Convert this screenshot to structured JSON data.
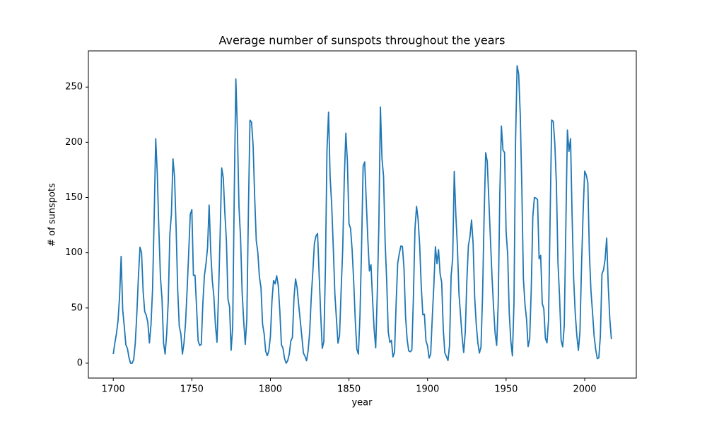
{
  "chart_data": {
    "type": "line",
    "title": "Average number of sunspots throughout the years",
    "x_label": "year",
    "y_label": "# of sunspots",
    "color": "#1f77b4",
    "x": [
      1700,
      1701,
      1702,
      1703,
      1704,
      1705,
      1706,
      1707,
      1708,
      1709,
      1710,
      1711,
      1712,
      1713,
      1714,
      1715,
      1716,
      1717,
      1718,
      1719,
      1720,
      1721,
      1722,
      1723,
      1724,
      1725,
      1726,
      1727,
      1728,
      1729,
      1730,
      1731,
      1732,
      1733,
      1734,
      1735,
      1736,
      1737,
      1738,
      1739,
      1740,
      1741,
      1742,
      1743,
      1744,
      1745,
      1746,
      1747,
      1748,
      1749,
      1750,
      1751,
      1752,
      1753,
      1754,
      1755,
      1756,
      1757,
      1758,
      1759,
      1760,
      1761,
      1762,
      1763,
      1764,
      1765,
      1766,
      1767,
      1768,
      1769,
      1770,
      1771,
      1772,
      1773,
      1774,
      1775,
      1776,
      1777,
      1778,
      1779,
      1780,
      1781,
      1782,
      1783,
      1784,
      1785,
      1786,
      1787,
      1788,
      1789,
      1790,
      1791,
      1792,
      1793,
      1794,
      1795,
      1796,
      1797,
      1798,
      1799,
      1800,
      1801,
      1802,
      1803,
      1804,
      1805,
      1806,
      1807,
      1808,
      1809,
      1810,
      1811,
      1812,
      1813,
      1814,
      1815,
      1816,
      1817,
      1818,
      1819,
      1820,
      1821,
      1822,
      1823,
      1824,
      1825,
      1826,
      1827,
      1828,
      1829,
      1830,
      1831,
      1832,
      1833,
      1834,
      1835,
      1836,
      1837,
      1838,
      1839,
      1840,
      1841,
      1842,
      1843,
      1844,
      1845,
      1846,
      1847,
      1848,
      1849,
      1850,
      1851,
      1852,
      1853,
      1854,
      1855,
      1856,
      1857,
      1858,
      1859,
      1860,
      1861,
      1862,
      1863,
      1864,
      1865,
      1866,
      1867,
      1868,
      1869,
      1870,
      1871,
      1872,
      1873,
      1874,
      1875,
      1876,
      1877,
      1878,
      1879,
      1880,
      1881,
      1882,
      1883,
      1884,
      1885,
      1886,
      1887,
      1888,
      1889,
      1890,
      1891,
      1892,
      1893,
      1894,
      1895,
      1896,
      1897,
      1898,
      1899,
      1900,
      1901,
      1902,
      1903,
      1904,
      1905,
      1906,
      1907,
      1908,
      1909,
      1910,
      1911,
      1912,
      1913,
      1914,
      1915,
      1916,
      1917,
      1918,
      1919,
      1920,
      1921,
      1922,
      1923,
      1924,
      1925,
      1926,
      1927,
      1928,
      1929,
      1930,
      1931,
      1932,
      1933,
      1934,
      1935,
      1936,
      1937,
      1938,
      1939,
      1940,
      1941,
      1942,
      1943,
      1944,
      1945,
      1946,
      1947,
      1948,
      1949,
      1950,
      1951,
      1952,
      1953,
      1954,
      1955,
      1956,
      1957,
      1958,
      1959,
      1960,
      1961,
      1962,
      1963,
      1964,
      1965,
      1966,
      1967,
      1968,
      1969,
      1970,
      1971,
      1972,
      1973,
      1974,
      1975,
      1976,
      1977,
      1978,
      1979,
      1980,
      1981,
      1982,
      1983,
      1984,
      1985,
      1986,
      1987,
      1988,
      1989,
      1990,
      1991,
      1992,
      1993,
      1994,
      1995,
      1996,
      1997,
      1998,
      1999,
      2000,
      2001,
      2002,
      2003,
      2004,
      2005,
      2006,
      2007,
      2008,
      2009,
      2010,
      2011,
      2012,
      2013,
      2014,
      2015,
      2016,
      2017
    ],
    "values": [
      8.3,
      18.3,
      26.7,
      38.3,
      60.0,
      96.7,
      48.3,
      33.3,
      16.7,
      13.3,
      5.0,
      0.0,
      0.0,
      3.3,
      18.3,
      45.0,
      78.3,
      105.0,
      100.0,
      65.0,
      46.7,
      43.3,
      36.7,
      18.3,
      35.0,
      66.7,
      130.0,
      203.3,
      171.7,
      121.7,
      78.3,
      58.3,
      18.3,
      8.3,
      26.7,
      56.7,
      116.7,
      135.0,
      185.0,
      168.3,
      121.7,
      66.7,
      33.3,
      26.7,
      8.3,
      18.3,
      36.7,
      66.7,
      100.0,
      134.8,
      139.0,
      79.5,
      79.7,
      51.2,
      20.3,
      16.0,
      17.0,
      54.0,
      79.3,
      90.0,
      104.8,
      143.2,
      102.0,
      75.2,
      60.7,
      34.8,
      19.0,
      63.0,
      116.3,
      176.8,
      168.0,
      136.0,
      110.8,
      58.0,
      51.0,
      11.7,
      33.0,
      154.2,
      257.3,
      209.8,
      141.3,
      113.5,
      64.2,
      38.0,
      17.0,
      40.2,
      138.2,
      220.0,
      218.2,
      196.8,
      149.8,
      111.0,
      100.0,
      78.2,
      68.3,
      35.5,
      26.7,
      10.7,
      6.8,
      11.3,
      24.2,
      56.7,
      75.0,
      71.8,
      79.2,
      70.3,
      46.8,
      16.8,
      13.5,
      4.2,
      0.0,
      2.3,
      8.3,
      20.3,
      23.2,
      59.0,
      76.3,
      68.3,
      52.9,
      38.5,
      24.2,
      9.2,
      6.3,
      2.2,
      11.4,
      28.2,
      59.9,
      83.0,
      108.5,
      115.2,
      117.4,
      80.8,
      44.3,
      13.4,
      19.5,
      85.8,
      192.7,
      227.3,
      168.7,
      143.0,
      105.5,
      63.3,
      40.3,
      18.1,
      25.1,
      65.8,
      102.7,
      166.3,
      208.3,
      182.5,
      126.3,
      122.0,
      102.7,
      74.1,
      39.0,
      12.7,
      8.2,
      43.4,
      104.4,
      178.3,
      182.2,
      146.6,
      112.1,
      83.5,
      89.2,
      57.8,
      30.7,
      13.9,
      62.8,
      123.6,
      232.0,
      185.3,
      169.2,
      110.1,
      74.5,
      28.3,
      18.9,
      20.7,
      5.7,
      10.0,
      53.7,
      90.5,
      99.0,
      106.1,
      105.8,
      86.3,
      42.4,
      21.8,
      11.2,
      10.4,
      11.8,
      59.5,
      121.7,
      142.0,
      130.0,
      106.6,
      69.4,
      43.8,
      44.4,
      20.2,
      15.7,
      4.6,
      8.5,
      40.8,
      70.1,
      105.5,
      90.1,
      102.8,
      80.9,
      73.2,
      30.9,
      9.5,
      6.0,
      2.4,
      16.1,
      79.0,
      95.0,
      173.6,
      134.6,
      105.7,
      62.7,
      43.5,
      23.7,
      9.7,
      27.9,
      74.0,
      106.5,
      114.7,
      129.7,
      108.2,
      59.4,
      35.1,
      18.6,
      9.2,
      14.6,
      60.2,
      132.8,
      190.6,
      182.6,
      148.0,
      113.0,
      79.2,
      50.8,
      27.1,
      16.1,
      55.3,
      154.3,
      214.7,
      193.0,
      190.7,
      118.9,
      98.3,
      45.0,
      20.1,
      6.6,
      54.2,
      200.7,
      269.3,
      261.7,
      225.1,
      159.0,
      76.4,
      53.4,
      39.9,
      15.0,
      22.0,
      66.8,
      132.9,
      150.0,
      149.4,
      148.0,
      94.4,
      97.6,
      54.1,
      49.2,
      22.5,
      18.4,
      39.3,
      131.0,
      220.1,
      218.9,
      198.9,
      162.4,
      91.0,
      60.5,
      20.6,
      14.8,
      33.9,
      123.0,
      211.1,
      191.8,
      203.3,
      133.0,
      76.1,
      44.9,
      25.1,
      11.6,
      28.9,
      88.3,
      136.3,
      173.9,
      170.4,
      163.6,
      99.3,
      65.3,
      45.8,
      24.7,
      12.6,
      4.2,
      4.8,
      24.9,
      80.8,
      84.5,
      94.0,
      113.3,
      69.8,
      39.8,
      21.7
    ],
    "xlim": [
      1684.15,
      2032.85
    ],
    "xticks": [
      1700,
      1750,
      1800,
      1850,
      1900,
      1950,
      2000
    ],
    "ylim": [
      -13.47,
      282.77
    ],
    "yticks": [
      0,
      50,
      100,
      150,
      200,
      250
    ]
  }
}
